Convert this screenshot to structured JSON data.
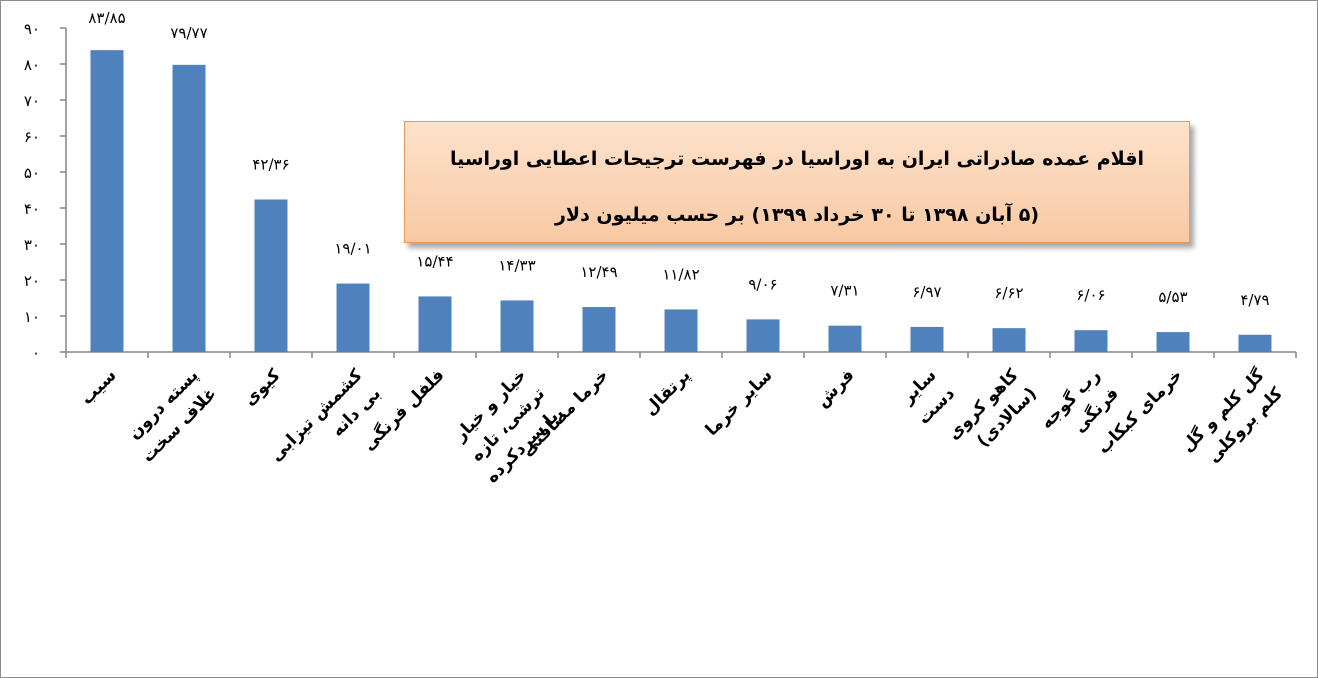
{
  "chart_data": {
    "type": "bar",
    "title_lines": [
      "اقلام عمده صادراتی ایران به اوراسیا در فهرست ترجیحات اعطایی اوراسیا",
      "(۵ آبان ۱۳۹۸ تا ۳۰ خرداد ۱۳۹۹) بر حسب میلیون دلار"
    ],
    "ylim": [
      0,
      90
    ],
    "yticks": [
      "۰",
      "۱۰",
      "۲۰",
      "۳۰",
      "۴۰",
      "۵۰",
      "۶۰",
      "۷۰",
      "۸۰",
      "۹۰"
    ],
    "bar_color": "#4f81bd",
    "grid": false,
    "categories": [
      [
        "سیب"
      ],
      [
        "پسته درون",
        "غلاف سخت"
      ],
      [
        "کیوی"
      ],
      [
        "کشمش تیزابی",
        "بی دانه"
      ],
      [
        "فلفل فرنگی"
      ],
      [
        "خیار و خیار",
        "ترشی، تازه",
        "یا سردکرده."
      ],
      [
        "خرما مضافتی"
      ],
      [
        "پرتقال"
      ],
      [
        "سایر خرما"
      ],
      [
        "فرش"
      ],
      [
        "سایر",
        "دست"
      ],
      [
        "کاهو کروی",
        "(سالادی)"
      ],
      [
        "رب گوجه",
        "فرنگی"
      ],
      [
        "خرمای کبکاب"
      ],
      [
        "گل کلم و گل",
        "کلم بروکلی"
      ]
    ],
    "values": [
      83.85,
      79.77,
      42.36,
      19.01,
      15.44,
      14.33,
      12.49,
      11.82,
      9.06,
      7.31,
      6.97,
      6.62,
      6.06,
      5.53,
      4.79
    ],
    "value_labels": [
      "۸۳/۸۵",
      "۷۹/۷۷",
      "۴۲/۳۶",
      "۱۹/۰۱",
      "۱۵/۴۴",
      "۱۴/۳۳",
      "۱۲/۴۹",
      "۱۱/۸۲",
      "۹/۰۶",
      "۷/۳۱",
      "۶/۹۷",
      "۶/۶۲",
      "۶/۰۶",
      "۵/۵۳",
      "۴/۷۹"
    ]
  }
}
